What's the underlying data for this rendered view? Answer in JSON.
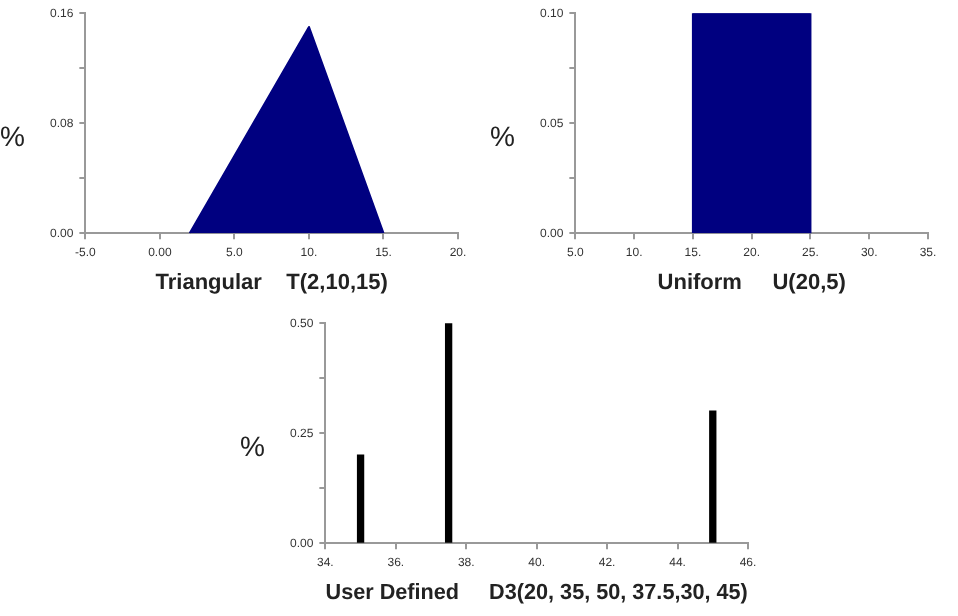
{
  "chart_data": [
    {
      "type": "area",
      "xlabel": "Triangular    T(2,10,15)",
      "ylabel": "%",
      "x": [
        2,
        10,
        15
      ],
      "values": [
        0,
        0.15,
        0
      ],
      "color": "#000080",
      "xlim": [
        -5,
        20
      ],
      "xticks": [
        {
          "value": -5,
          "label": "-5.0"
        },
        {
          "value": 0,
          "label": "0.00"
        },
        {
          "value": 5,
          "label": "5.0"
        },
        {
          "value": 10,
          "label": "10."
        },
        {
          "value": 15,
          "label": "15."
        },
        {
          "value": 20,
          "label": "20."
        }
      ],
      "ylim": [
        0,
        0.16
      ],
      "yticks": [
        {
          "value": 0,
          "label": "0.00"
        },
        {
          "value": 0.04,
          "label": null
        },
        {
          "value": 0.08,
          "label": "0.08"
        },
        {
          "value": 0.12,
          "label": null
        },
        {
          "value": 0.16,
          "label": "0.16"
        }
      ]
    },
    {
      "type": "area",
      "xlabel": "Uniform     U(20,5)",
      "ylabel": "%",
      "x": [
        15,
        15,
        25,
        25
      ],
      "values": [
        0,
        0.1,
        0.1,
        0
      ],
      "color": "#000080",
      "xlim": [
        5,
        35
      ],
      "xticks": [
        {
          "value": 5,
          "label": "5.0"
        },
        {
          "value": 10,
          "label": "10."
        },
        {
          "value": 15,
          "label": "15."
        },
        {
          "value": 20,
          "label": "20."
        },
        {
          "value": 25,
          "label": "25."
        },
        {
          "value": 30,
          "label": "30."
        },
        {
          "value": 35,
          "label": "35."
        }
      ],
      "ylim": [
        0,
        0.1
      ],
      "yticks": [
        {
          "value": 0,
          "label": "0.00"
        },
        {
          "value": 0.025,
          "label": null
        },
        {
          "value": 0.05,
          "label": "0.05"
        },
        {
          "value": 0.075,
          "label": null
        },
        {
          "value": 0.1,
          "label": "0.10"
        }
      ]
    },
    {
      "type": "bar",
      "xlabel": "User Defined     D3(20, 35, 50, 37.5,30, 45)",
      "ylabel": "%",
      "x": [
        35,
        37.5,
        45
      ],
      "values": [
        0.2,
        0.5,
        0.3
      ],
      "color": "#000000",
      "xlim": [
        34,
        46
      ],
      "xticks": [
        {
          "value": 34,
          "label": "34."
        },
        {
          "value": 36,
          "label": "36."
        },
        {
          "value": 38,
          "label": "38."
        },
        {
          "value": 40,
          "label": "40."
        },
        {
          "value": 42,
          "label": "42."
        },
        {
          "value": 44,
          "label": "44."
        },
        {
          "value": 46,
          "label": "46."
        }
      ],
      "ylim": [
        0,
        0.5
      ],
      "yticks": [
        {
          "value": 0,
          "label": "0.00"
        },
        {
          "value": 0.125,
          "label": null
        },
        {
          "value": 0.25,
          "label": "0.25"
        },
        {
          "value": 0.375,
          "label": null
        },
        {
          "value": 0.5,
          "label": "0.50"
        }
      ]
    }
  ]
}
